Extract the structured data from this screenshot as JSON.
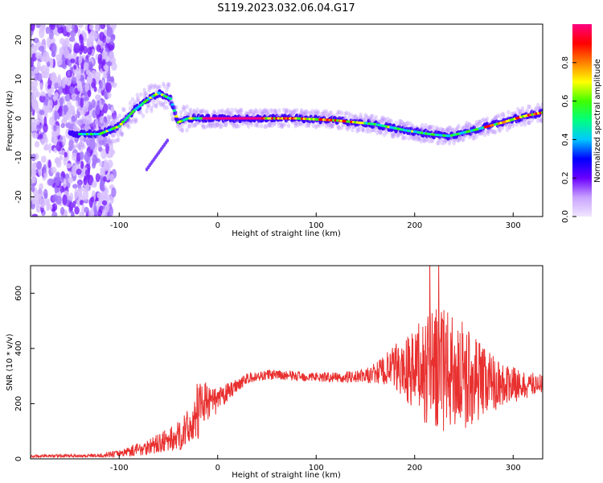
{
  "title": "S119.2023.032.06.04.G17",
  "chart_data": [
    {
      "type": "heatmap",
      "xlabel": "Height of straight line (km)",
      "ylabel": "Frequency (Hz)",
      "xlim": [
        -190,
        330
      ],
      "ylim": [
        -25,
        24
      ],
      "xticks": [
        -100,
        0,
        100,
        200,
        300
      ],
      "yticks": [
        -20,
        -10,
        0,
        10,
        20
      ],
      "colorbar": {
        "label": "Normalized spectral amplitude",
        "range": [
          0,
          1
        ],
        "ticks": [
          0.0,
          0.2,
          0.4,
          0.6,
          0.8
        ],
        "colormap": [
          "#f0e6ff",
          "#c9a3ff",
          "#6a00ff",
          "#0000ff",
          "#00c8ff",
          "#00ff80",
          "#40ff00",
          "#ffff00",
          "#ff8000",
          "#ff0000",
          "#ff0080"
        ]
      },
      "ridge": {
        "x": [
          -150,
          -120,
          -100,
          -85,
          -70,
          -60,
          -48,
          -40,
          -30,
          -10,
          0,
          40,
          80,
          120,
          160,
          190,
          215,
          235,
          260,
          290,
          310,
          330
        ],
        "y": [
          -4,
          -4,
          -2,
          2,
          5,
          6.5,
          5,
          -1,
          0,
          0,
          0,
          0,
          0,
          -0.5,
          -1.5,
          -3,
          -4,
          -4.5,
          -3,
          -1,
          0.5,
          1.5
        ]
      }
    },
    {
      "type": "line",
      "xlabel": "Height of straight line (km)",
      "ylabel": "SNR (10 * v/v)",
      "xlim": [
        -190,
        330
      ],
      "ylim": [
        0,
        700
      ],
      "xticks": [
        -100,
        0,
        100,
        200,
        300
      ],
      "yticks": [
        0,
        200,
        400,
        600
      ],
      "color": "#e8302f",
      "envelope": {
        "x": [
          -190,
          -120,
          -100,
          -80,
          -60,
          -40,
          -25,
          -20,
          -15,
          -10,
          0,
          10,
          20,
          30,
          50,
          80,
          120,
          150,
          170,
          185,
          200,
          215,
          230,
          250,
          270,
          290,
          310,
          330
        ],
        "mean": [
          10,
          12,
          20,
          35,
          55,
          80,
          130,
          170,
          220,
          200,
          210,
          240,
          270,
          290,
          305,
          300,
          295,
          300,
          320,
          330,
          320,
          330,
          320,
          300,
          285,
          270,
          265,
          275
        ],
        "amp": [
          5,
          6,
          12,
          25,
          35,
          55,
          70,
          120,
          80,
          60,
          45,
          35,
          25,
          20,
          18,
          18,
          18,
          25,
          60,
          100,
          150,
          220,
          220,
          200,
          130,
          80,
          50,
          35
        ]
      }
    }
  ]
}
